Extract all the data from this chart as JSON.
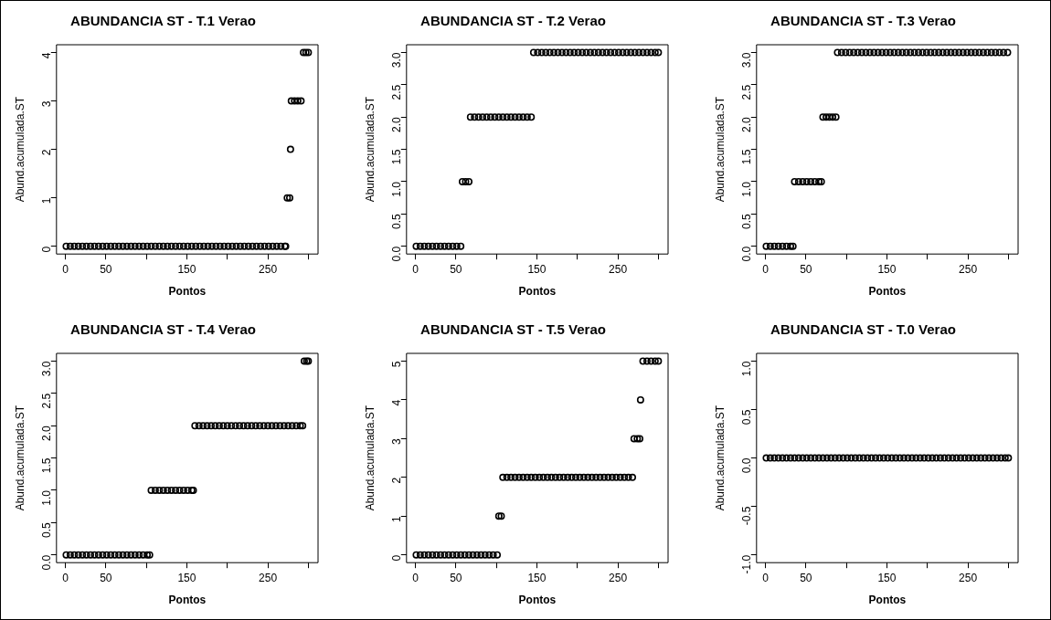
{
  "chart_data": [
    {
      "type": "scatter",
      "title": "ABUNDANCIA ST - T.1 Verao",
      "xlabel": "Pontos",
      "ylabel": "Abund.acumulada.ST",
      "marker": "circle",
      "xlim": [
        -11,
        312
      ],
      "xticks": [
        0,
        50,
        {
          "value": 100,
          "label": null
        },
        150,
        {
          "value": 200,
          "label": null
        },
        250,
        {
          "value": 300,
          "label": null
        }
      ],
      "ylim": [
        -0.16,
        4.16
      ],
      "yticks": [
        0,
        1,
        2,
        3,
        4
      ],
      "series": [
        {
          "color": "#000000",
          "x": [
            1,
            6,
            11,
            16,
            21,
            26,
            31,
            36,
            41,
            46,
            51,
            56,
            61,
            66,
            71,
            76,
            81,
            86,
            91,
            96,
            101,
            106,
            111,
            116,
            121,
            126,
            131,
            136,
            141,
            146,
            151,
            156,
            161,
            166,
            171,
            176,
            181,
            186,
            191,
            196,
            201,
            206,
            211,
            216,
            221,
            226,
            231,
            236,
            241,
            246,
            251,
            256,
            261,
            266,
            271,
            272,
            274,
            277,
            278,
            279,
            283,
            287,
            291,
            294,
            297,
            300
          ],
          "values": [
            0,
            0,
            0,
            0,
            0,
            0,
            0,
            0,
            0,
            0,
            0,
            0,
            0,
            0,
            0,
            0,
            0,
            0,
            0,
            0,
            0,
            0,
            0,
            0,
            0,
            0,
            0,
            0,
            0,
            0,
            0,
            0,
            0,
            0,
            0,
            0,
            0,
            0,
            0,
            0,
            0,
            0,
            0,
            0,
            0,
            0,
            0,
            0,
            0,
            0,
            0,
            0,
            0,
            0,
            0,
            0,
            1,
            1,
            2,
            3,
            3,
            3,
            3,
            4,
            4,
            4
          ]
        }
      ]
    },
    {
      "type": "scatter",
      "title": "ABUNDANCIA ST - T.2 Verao",
      "xlabel": "Pontos",
      "ylabel": "Abund.acumulada.ST",
      "marker": "circle",
      "xlim": [
        -11,
        312
      ],
      "xticks": [
        0,
        50,
        {
          "value": 100,
          "label": null
        },
        150,
        {
          "value": 200,
          "label": null
        },
        250,
        {
          "value": 300,
          "label": null
        }
      ],
      "ylim": [
        -0.12,
        3.12
      ],
      "yticks": [
        {
          "value": 0,
          "label": "0.0"
        },
        {
          "value": 0.5,
          "label": "0.5"
        },
        {
          "value": 1,
          "label": "1.0"
        },
        {
          "value": 1.5,
          "label": "1.5"
        },
        {
          "value": 2,
          "label": "2.0"
        },
        {
          "value": 2.5,
          "label": "2.5"
        },
        {
          "value": 3,
          "label": "3.0"
        }
      ],
      "series": [
        {
          "color": "#000000",
          "x": [
            1,
            6,
            11,
            16,
            21,
            26,
            31,
            36,
            41,
            46,
            51,
            56,
            58,
            62,
            66,
            68,
            73,
            78,
            83,
            88,
            93,
            98,
            103,
            108,
            113,
            118,
            123,
            128,
            133,
            138,
            143,
            146,
            151,
            156,
            161,
            166,
            171,
            176,
            181,
            186,
            191,
            196,
            201,
            206,
            211,
            216,
            221,
            226,
            231,
            236,
            241,
            246,
            251,
            256,
            261,
            266,
            271,
            276,
            281,
            286,
            291,
            296,
            300
          ],
          "values": [
            0,
            0,
            0,
            0,
            0,
            0,
            0,
            0,
            0,
            0,
            0,
            0,
            1,
            1,
            1,
            2,
            2,
            2,
            2,
            2,
            2,
            2,
            2,
            2,
            2,
            2,
            2,
            2,
            2,
            2,
            2,
            3,
            3,
            3,
            3,
            3,
            3,
            3,
            3,
            3,
            3,
            3,
            3,
            3,
            3,
            3,
            3,
            3,
            3,
            3,
            3,
            3,
            3,
            3,
            3,
            3,
            3,
            3,
            3,
            3,
            3,
            3,
            3
          ]
        }
      ]
    },
    {
      "type": "scatter",
      "title": "ABUNDANCIA ST - T.3 Verao",
      "xlabel": "Pontos",
      "ylabel": "Abund.acumulada.ST",
      "marker": "circle",
      "xlim": [
        -11,
        312
      ],
      "xticks": [
        0,
        50,
        {
          "value": 100,
          "label": null
        },
        150,
        {
          "value": 200,
          "label": null
        },
        250,
        {
          "value": 300,
          "label": null
        }
      ],
      "ylim": [
        -0.12,
        3.12
      ],
      "yticks": [
        {
          "value": 0,
          "label": "0.0"
        },
        {
          "value": 0.5,
          "label": "0.5"
        },
        {
          "value": 1,
          "label": "1.0"
        },
        {
          "value": 1.5,
          "label": "1.5"
        },
        {
          "value": 2,
          "label": "2.0"
        },
        {
          "value": 2.5,
          "label": "2.5"
        },
        {
          "value": 3,
          "label": "3.0"
        }
      ],
      "series": [
        {
          "color": "#000000",
          "x": [
            1,
            6,
            11,
            16,
            21,
            26,
            31,
            34,
            36,
            41,
            46,
            51,
            56,
            61,
            66,
            69,
            71,
            75,
            79,
            83,
            87,
            89,
            94,
            99,
            104,
            109,
            114,
            119,
            124,
            129,
            134,
            139,
            144,
            149,
            154,
            159,
            164,
            169,
            174,
            179,
            184,
            189,
            194,
            199,
            204,
            209,
            214,
            219,
            224,
            229,
            234,
            239,
            244,
            249,
            254,
            259,
            264,
            269,
            274,
            279,
            284,
            289,
            294,
            299
          ],
          "values": [
            0,
            0,
            0,
            0,
            0,
            0,
            0,
            0,
            1,
            1,
            1,
            1,
            1,
            1,
            1,
            1,
            2,
            2,
            2,
            2,
            2,
            3,
            3,
            3,
            3,
            3,
            3,
            3,
            3,
            3,
            3,
            3,
            3,
            3,
            3,
            3,
            3,
            3,
            3,
            3,
            3,
            3,
            3,
            3,
            3,
            3,
            3,
            3,
            3,
            3,
            3,
            3,
            3,
            3,
            3,
            3,
            3,
            3,
            3,
            3,
            3,
            3,
            3,
            3
          ]
        }
      ]
    },
    {
      "type": "scatter",
      "title": "ABUNDANCIA ST - T.4 Verao",
      "xlabel": "Pontos",
      "ylabel": "Abund.acumulada.ST",
      "marker": "circle",
      "xlim": [
        -11,
        312
      ],
      "xticks": [
        0,
        50,
        {
          "value": 100,
          "label": null
        },
        150,
        {
          "value": 200,
          "label": null
        },
        250,
        {
          "value": 300,
          "label": null
        }
      ],
      "ylim": [
        -0.12,
        3.12
      ],
      "yticks": [
        {
          "value": 0,
          "label": "0.0"
        },
        {
          "value": 0.5,
          "label": "0.5"
        },
        {
          "value": 1,
          "label": "1.0"
        },
        {
          "value": 1.5,
          "label": "1.5"
        },
        {
          "value": 2,
          "label": "2.0"
        },
        {
          "value": 2.5,
          "label": "2.5"
        },
        {
          "value": 3,
          "label": "3.0"
        }
      ],
      "series": [
        {
          "color": "#000000",
          "x": [
            1,
            6,
            11,
            16,
            21,
            26,
            31,
            36,
            41,
            46,
            51,
            56,
            61,
            66,
            71,
            76,
            81,
            86,
            91,
            96,
            101,
            104,
            106,
            111,
            116,
            121,
            126,
            131,
            136,
            141,
            146,
            151,
            156,
            158,
            160,
            165,
            170,
            175,
            180,
            185,
            190,
            195,
            200,
            205,
            210,
            215,
            220,
            225,
            230,
            235,
            240,
            245,
            250,
            255,
            260,
            265,
            270,
            275,
            280,
            285,
            290,
            293,
            295,
            298,
            300
          ],
          "values": [
            0,
            0,
            0,
            0,
            0,
            0,
            0,
            0,
            0,
            0,
            0,
            0,
            0,
            0,
            0,
            0,
            0,
            0,
            0,
            0,
            0,
            0,
            1,
            1,
            1,
            1,
            1,
            1,
            1,
            1,
            1,
            1,
            1,
            1,
            2,
            2,
            2,
            2,
            2,
            2,
            2,
            2,
            2,
            2,
            2,
            2,
            2,
            2,
            2,
            2,
            2,
            2,
            2,
            2,
            2,
            2,
            2,
            2,
            2,
            2,
            2,
            2,
            3,
            3,
            3
          ]
        }
      ]
    },
    {
      "type": "scatter",
      "title": "ABUNDANCIA ST - T.5 Verao",
      "xlabel": "Pontos",
      "ylabel": "Abund.acumulada.ST",
      "marker": "circle",
      "xlim": [
        -11,
        312
      ],
      "xticks": [
        0,
        50,
        {
          "value": 100,
          "label": null
        },
        150,
        {
          "value": 200,
          "label": null
        },
        250,
        {
          "value": 300,
          "label": null
        }
      ],
      "ylim": [
        -0.2,
        5.2
      ],
      "yticks": [
        0,
        1,
        2,
        3,
        4,
        5
      ],
      "series": [
        {
          "color": "#000000",
          "x": [
            1,
            6,
            11,
            16,
            21,
            26,
            31,
            36,
            41,
            46,
            51,
            56,
            61,
            66,
            71,
            76,
            81,
            86,
            91,
            96,
            101,
            103,
            106,
            108,
            113,
            118,
            123,
            128,
            133,
            138,
            143,
            148,
            153,
            158,
            163,
            168,
            173,
            178,
            183,
            188,
            193,
            198,
            203,
            208,
            213,
            218,
            223,
            228,
            233,
            238,
            243,
            248,
            253,
            258,
            263,
            268,
            270,
            274,
            277,
            278,
            281,
            286,
            291,
            296,
            300
          ],
          "values": [
            0,
            0,
            0,
            0,
            0,
            0,
            0,
            0,
            0,
            0,
            0,
            0,
            0,
            0,
            0,
            0,
            0,
            0,
            0,
            0,
            0,
            1,
            1,
            2,
            2,
            2,
            2,
            2,
            2,
            2,
            2,
            2,
            2,
            2,
            2,
            2,
            2,
            2,
            2,
            2,
            2,
            2,
            2,
            2,
            2,
            2,
            2,
            2,
            2,
            2,
            2,
            2,
            2,
            2,
            2,
            2,
            3,
            3,
            3,
            4,
            5,
            5,
            5,
            5,
            5
          ]
        }
      ]
    },
    {
      "type": "scatter",
      "title": "ABUNDANCIA ST - T.0 Verao",
      "xlabel": "Pontos",
      "ylabel": "Abund.acumulada.ST",
      "marker": "circle",
      "xlim": [
        -11,
        312
      ],
      "xticks": [
        0,
        50,
        {
          "value": 100,
          "label": null
        },
        150,
        {
          "value": 200,
          "label": null
        },
        250,
        {
          "value": 300,
          "label": null
        }
      ],
      "ylim": [
        -1.08,
        1.08
      ],
      "yticks": [
        {
          "value": -1,
          "label": "-1.0"
        },
        {
          "value": -0.5,
          "label": "-0.5"
        },
        {
          "value": 0,
          "label": "0.0"
        },
        {
          "value": 0.5,
          "label": "0.5"
        },
        {
          "value": 1,
          "label": "1.0"
        }
      ],
      "series": [
        {
          "color": "#000000",
          "x": [
            1,
            6,
            11,
            16,
            21,
            26,
            31,
            36,
            41,
            46,
            51,
            56,
            61,
            66,
            71,
            76,
            81,
            86,
            91,
            96,
            101,
            106,
            111,
            116,
            121,
            126,
            131,
            136,
            141,
            146,
            151,
            156,
            161,
            166,
            171,
            176,
            181,
            186,
            191,
            196,
            201,
            206,
            211,
            216,
            221,
            226,
            231,
            236,
            241,
            246,
            251,
            256,
            261,
            266,
            271,
            276,
            281,
            286,
            291,
            296,
            300
          ],
          "values": [
            0,
            0,
            0,
            0,
            0,
            0,
            0,
            0,
            0,
            0,
            0,
            0,
            0,
            0,
            0,
            0,
            0,
            0,
            0,
            0,
            0,
            0,
            0,
            0,
            0,
            0,
            0,
            0,
            0,
            0,
            0,
            0,
            0,
            0,
            0,
            0,
            0,
            0,
            0,
            0,
            0,
            0,
            0,
            0,
            0,
            0,
            0,
            0,
            0,
            0,
            0,
            0,
            0,
            0,
            0,
            0,
            0,
            0,
            0,
            0,
            0
          ]
        }
      ]
    }
  ]
}
